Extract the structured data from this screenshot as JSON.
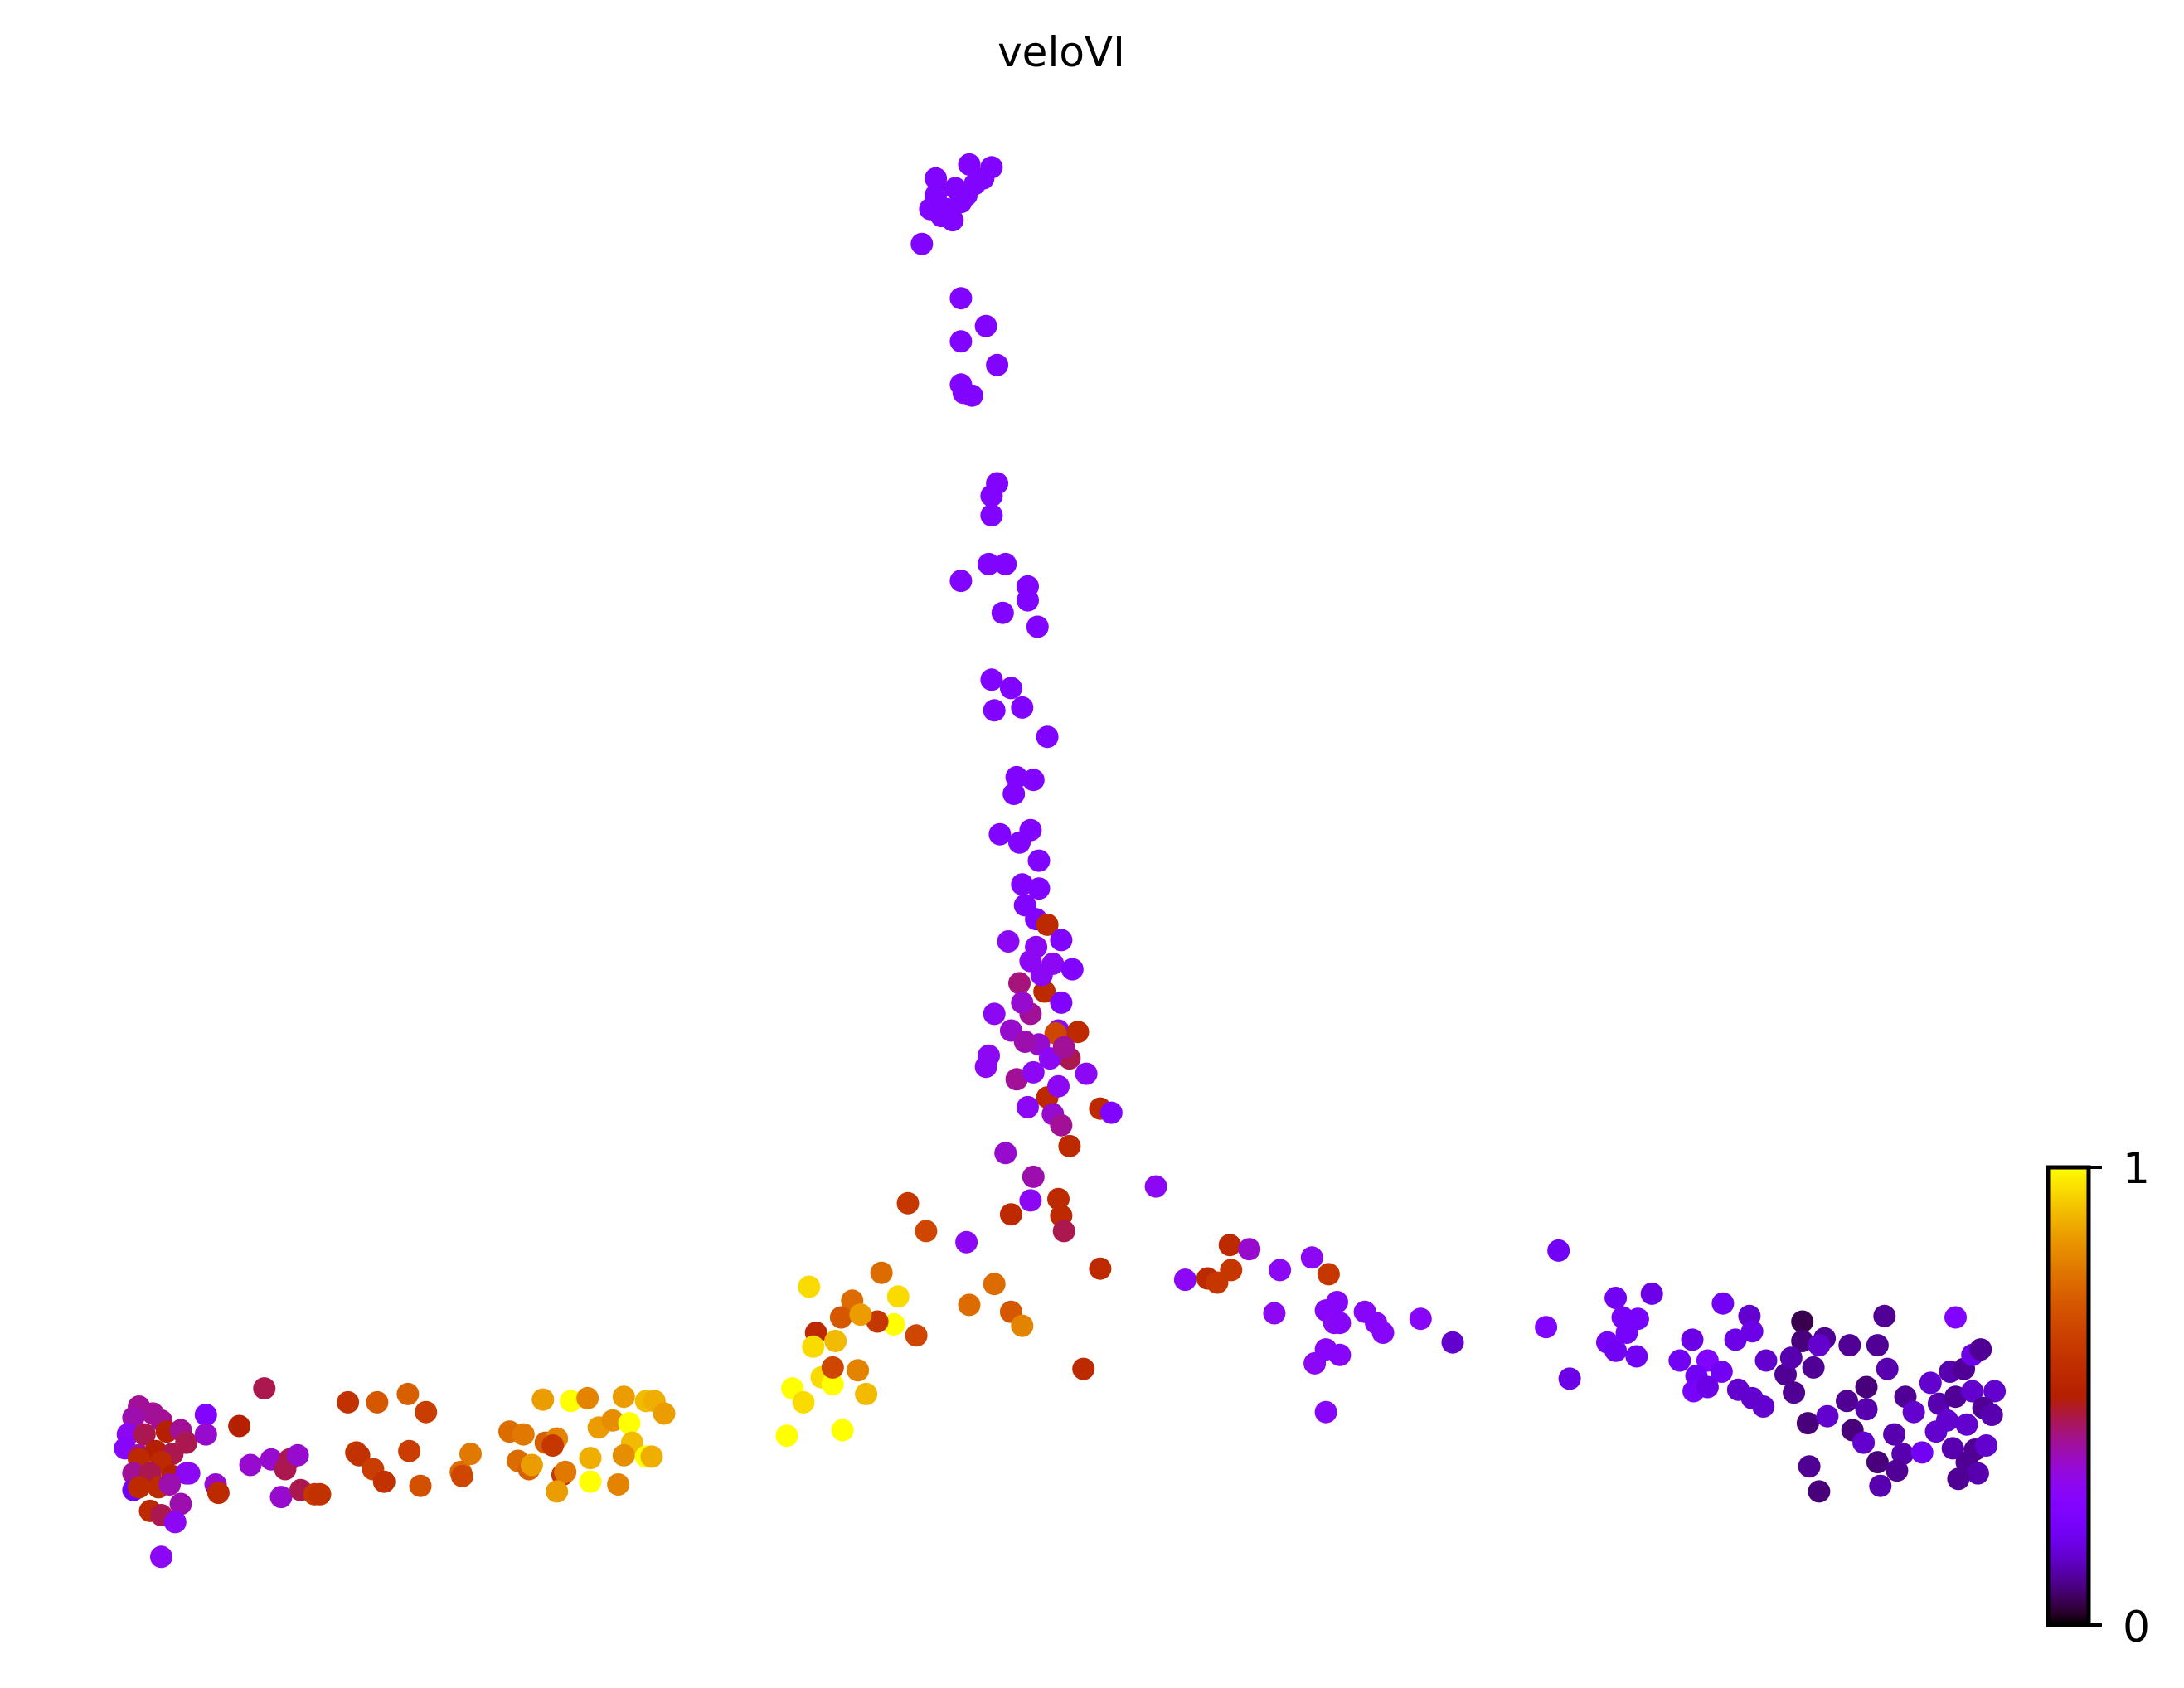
{
  "chart_data": {
    "type": "scatter",
    "title": "veloVI",
    "xlabel": "",
    "ylabel": "",
    "xlim": [
      0,
      136
    ],
    "ylim": [
      0,
      102
    ],
    "grid": false,
    "axes_visible": false,
    "colormap": "gnuplot",
    "colorbar": {
      "min": 0,
      "max": 1,
      "tick_labels": [
        "0",
        "1"
      ],
      "placement": "bottom-right"
    },
    "point_fields": [
      "x",
      "y",
      "value"
    ],
    "points": [
      [
        59.2,
        100.2,
        0.25
      ],
      [
        60.6,
        99.5,
        0.25
      ],
      [
        61.6,
        101.2,
        0.25
      ],
      [
        63.2,
        101,
        0.25
      ],
      [
        62.6,
        100.2,
        0.25
      ],
      [
        61,
        98.5,
        0.25
      ],
      [
        58.8,
        98,
        0.25
      ],
      [
        59.6,
        97.5,
        0.25
      ],
      [
        60.4,
        97.2,
        0.25
      ],
      [
        62,
        99.8,
        0.25
      ],
      [
        58.2,
        95.5,
        0.25
      ],
      [
        61.4,
        99,
        0.25
      ],
      [
        60,
        98,
        0.25
      ],
      [
        59.2,
        99,
        0.25
      ],
      [
        61,
        91.6,
        0.25
      ],
      [
        62.8,
        89.6,
        0.25
      ],
      [
        61,
        88.5,
        0.25
      ],
      [
        63.6,
        86.8,
        0.25
      ],
      [
        61,
        85.4,
        0.25
      ],
      [
        61.8,
        84.6,
        0.25
      ],
      [
        61.2,
        84.8,
        0.25
      ],
      [
        63.6,
        78.3,
        0.25
      ],
      [
        63.2,
        77.4,
        0.25
      ],
      [
        63.2,
        76,
        0.25
      ],
      [
        61,
        71.3,
        0.25
      ],
      [
        63,
        72.5,
        0.25
      ],
      [
        64.2,
        72.5,
        0.25
      ],
      [
        65.8,
        70.9,
        0.25
      ],
      [
        65.8,
        69.9,
        0.25
      ],
      [
        64,
        69,
        0.25
      ],
      [
        66.5,
        68,
        0.25
      ],
      [
        63.2,
        64.2,
        0.25
      ],
      [
        64.6,
        63.6,
        0.25
      ],
      [
        63.4,
        62,
        0.25
      ],
      [
        65.4,
        62.2,
        0.25
      ],
      [
        67.2,
        60.1,
        0.25
      ],
      [
        65,
        57.2,
        0.25
      ],
      [
        66.2,
        57,
        0.25
      ],
      [
        64.8,
        56,
        0.25
      ],
      [
        66,
        53.4,
        0.25
      ],
      [
        63.8,
        53.1,
        0.25
      ],
      [
        65.2,
        52.5,
        0.25
      ],
      [
        66.6,
        51.2,
        0.25
      ],
      [
        65.4,
        49.5,
        0.25
      ],
      [
        66.6,
        49.2,
        0.25
      ],
      [
        65.6,
        48,
        0.25
      ],
      [
        66.4,
        47,
        0.25
      ],
      [
        67.2,
        46.6,
        0.55
      ],
      [
        64.4,
        45.4,
        0.3
      ],
      [
        68.2,
        45.5,
        0.25
      ],
      [
        66,
        44,
        0.3
      ],
      [
        67.6,
        43.8,
        0.3
      ],
      [
        69,
        43.4,
        0.25
      ],
      [
        65.2,
        42.4,
        0.42
      ],
      [
        67,
        41.8,
        0.55
      ],
      [
        63.4,
        40.2,
        0.3
      ],
      [
        66,
        40.2,
        0.4
      ],
      [
        68.2,
        41,
        0.25
      ],
      [
        64.6,
        39,
        0.35
      ],
      [
        68,
        39,
        0.3
      ],
      [
        67.8,
        38.8,
        0.65
      ],
      [
        69.4,
        38.9,
        0.55
      ],
      [
        63,
        37.2,
        0.3
      ],
      [
        66.6,
        38,
        0.35
      ],
      [
        68.8,
        37,
        0.45
      ],
      [
        65,
        35.5,
        0.4
      ],
      [
        67.2,
        34.2,
        0.55
      ],
      [
        70,
        35.9,
        0.3
      ],
      [
        68,
        35,
        0.3
      ],
      [
        65.8,
        33.5,
        0.3
      ],
      [
        71,
        33.4,
        0.55
      ],
      [
        71.8,
        33.1,
        0.25
      ],
      [
        67.6,
        33,
        0.35
      ],
      [
        68.2,
        32.2,
        0.4
      ],
      [
        64.2,
        30.2,
        0.35
      ],
      [
        68.8,
        30.7,
        0.55
      ],
      [
        66.2,
        28.5,
        0.38
      ],
      [
        66,
        26.8,
        0.3
      ],
      [
        68,
        26.9,
        0.55
      ],
      [
        68.2,
        25.7,
        0.55
      ],
      [
        68.4,
        24.6,
        0.45
      ],
      [
        64.6,
        25.8,
        0.55
      ],
      [
        61.4,
        23.8,
        0.3
      ],
      [
        75,
        27.8,
        0.3
      ],
      [
        65.4,
        41,
        0.35
      ],
      [
        66.8,
        43,
        0.3
      ],
      [
        66.2,
        36,
        0.3
      ],
      [
        67.4,
        37,
        0.3
      ],
      [
        65.6,
        38.2,
        0.38
      ],
      [
        68.4,
        37.8,
        0.4
      ],
      [
        62.8,
        36.4,
        0.3
      ],
      [
        66.4,
        45,
        0.3
      ],
      [
        57.2,
        26.6,
        0.6
      ],
      [
        58.5,
        24.6,
        0.65
      ],
      [
        63.4,
        20.8,
        0.75
      ],
      [
        61.6,
        19.3,
        0.75
      ],
      [
        64.6,
        18.8,
        0.7
      ],
      [
        65.4,
        17.8,
        0.8
      ],
      [
        69.8,
        14.7,
        0.55
      ],
      [
        71,
        21.9,
        0.55
      ],
      [
        55.3,
        21.6,
        0.75
      ],
      [
        56.5,
        19.9,
        0.95
      ],
      [
        56.2,
        17.9,
        1
      ],
      [
        57.8,
        17.1,
        0.65
      ],
      [
        55,
        18.1,
        0.6
      ],
      [
        53.2,
        19.6,
        0.75
      ],
      [
        52.4,
        18.4,
        0.7
      ],
      [
        53.8,
        18.6,
        0.85
      ],
      [
        50.1,
        20.6,
        0.95
      ],
      [
        50.6,
        17.3,
        0.55
      ],
      [
        52,
        16.7,
        0.9
      ],
      [
        50.4,
        16.3,
        0.95
      ],
      [
        51,
        14.1,
        0.95
      ],
      [
        51.8,
        13.6,
        1
      ],
      [
        53.6,
        14.6,
        0.8
      ],
      [
        51.8,
        14.8,
        0.65
      ],
      [
        54.2,
        12.9,
        0.9
      ],
      [
        48.9,
        13.3,
        1
      ],
      [
        49.7,
        12.3,
        0.95
      ],
      [
        48.5,
        9.9,
        1
      ],
      [
        52.5,
        10.3,
        1
      ],
      [
        80.3,
        23.6,
        0.55
      ],
      [
        81.7,
        23.3,
        0.35
      ],
      [
        80.4,
        21.8,
        0.6
      ],
      [
        78.7,
        21.2,
        0.55
      ],
      [
        79.4,
        20.9,
        0.6
      ],
      [
        77.1,
        21.1,
        0.3
      ],
      [
        83.9,
        21.8,
        0.3
      ],
      [
        86.2,
        22.7,
        0.3
      ],
      [
        87.4,
        21.5,
        0.6
      ],
      [
        83.5,
        18.7,
        0.3
      ],
      [
        88,
        19.5,
        0.28
      ],
      [
        87.2,
        18.9,
        0.28
      ],
      [
        87.8,
        18,
        0.3
      ],
      [
        88.2,
        18,
        0.28
      ],
      [
        90,
        18.8,
        0.28
      ],
      [
        90.8,
        18,
        0.28
      ],
      [
        91.3,
        17.3,
        0.28
      ],
      [
        94,
        18.3,
        0.28
      ],
      [
        86.4,
        15.1,
        0.3
      ],
      [
        87.2,
        16.1,
        0.28
      ],
      [
        88.2,
        15.7,
        0.28
      ],
      [
        87.2,
        11.6,
        0.28
      ],
      [
        96.3,
        16.6,
        0.15
      ],
      [
        103,
        17.7,
        0.25
      ],
      [
        103.9,
        23.2,
        0.2
      ],
      [
        104.7,
        14,
        0.18
      ],
      [
        108,
        19.8,
        0.2
      ],
      [
        110.6,
        20.1,
        0.18
      ],
      [
        108.5,
        18.4,
        0.22
      ],
      [
        109.6,
        18.3,
        0.22
      ],
      [
        108.8,
        17.3,
        0.22
      ],
      [
        107.4,
        16.6,
        0.22
      ],
      [
        108,
        16,
        0.2
      ],
      [
        109.5,
        15.6,
        0.2
      ],
      [
        112.6,
        15.3,
        0.2
      ],
      [
        113.5,
        16.8,
        0.18
      ],
      [
        115.7,
        19.4,
        0.2
      ],
      [
        117.6,
        18.5,
        0.15
      ],
      [
        117.8,
        17.4,
        0.18
      ],
      [
        116.6,
        16.8,
        0.18
      ],
      [
        114.6,
        15.3,
        0.25
      ],
      [
        113.8,
        14.2,
        0.2
      ],
      [
        113.6,
        13.1,
        0.22
      ],
      [
        114.6,
        13.4,
        0.18
      ],
      [
        115.6,
        14.5,
        0.2
      ],
      [
        116.8,
        13.2,
        0.15
      ],
      [
        117.8,
        12.6,
        0.15
      ],
      [
        118.6,
        12,
        0.15
      ],
      [
        118.8,
        15.3,
        0.15
      ],
      [
        120.2,
        14.3,
        0.1
      ],
      [
        121.4,
        18.1,
        0.05
      ],
      [
        121.4,
        16.7,
        0.08
      ],
      [
        123,
        16.9,
        0.1
      ],
      [
        122.6,
        16.4,
        0.15
      ],
      [
        120.6,
        15.5,
        0.12
      ],
      [
        122.2,
        14.8,
        0.1
      ],
      [
        120.8,
        13,
        0.1
      ],
      [
        121.8,
        10.8,
        0.08
      ],
      [
        123.2,
        11.3,
        0.15
      ],
      [
        124.8,
        16.4,
        0.1
      ],
      [
        126.8,
        16.4,
        0.1
      ],
      [
        127.3,
        18.5,
        0.1
      ],
      [
        127.5,
        14.7,
        0.12
      ],
      [
        124.6,
        12.4,
        0.1
      ],
      [
        126,
        13.4,
        0.08
      ],
      [
        126,
        11.8,
        0.12
      ],
      [
        125,
        10.3,
        0.08
      ],
      [
        121.9,
        7.7,
        0.1
      ],
      [
        122.6,
        5.9,
        0.08
      ],
      [
        128.8,
        12.7,
        0.1
      ],
      [
        129.4,
        11.6,
        0.15
      ],
      [
        125.8,
        9.4,
        0.15
      ],
      [
        128,
        10,
        0.12
      ],
      [
        126.8,
        8,
        0.08
      ],
      [
        128.6,
        8.6,
        0.12
      ],
      [
        128.2,
        7.4,
        0.1
      ],
      [
        127,
        6.3,
        0.12
      ],
      [
        130,
        8.7,
        0.2
      ],
      [
        132.4,
        18.4,
        0.25
      ],
      [
        130.6,
        13.7,
        0.15
      ],
      [
        132,
        14.5,
        0.12
      ],
      [
        133,
        14.7,
        0.1
      ],
      [
        133.6,
        15.7,
        0.18
      ],
      [
        134.2,
        16.1,
        0.1
      ],
      [
        131.2,
        12.2,
        0.12
      ],
      [
        132.4,
        12.7,
        0.1
      ],
      [
        133.6,
        13.1,
        0.15
      ],
      [
        135.2,
        13.1,
        0.15
      ],
      [
        134.4,
        11.9,
        0.1
      ],
      [
        135,
        11.4,
        0.12
      ],
      [
        131.8,
        11,
        0.15
      ],
      [
        133.2,
        10.7,
        0.15
      ],
      [
        132.2,
        9,
        0.12
      ],
      [
        133.8,
        8.9,
        0.1
      ],
      [
        134.6,
        9.2,
        0.15
      ],
      [
        133.2,
        8,
        0.1
      ],
      [
        134,
        7.2,
        0.12
      ],
      [
        132.6,
        6.8,
        0.1
      ],
      [
        131,
        10.2,
        0.15
      ],
      [
        2,
        12,
        0.4
      ],
      [
        3,
        11.5,
        0.4
      ],
      [
        1.6,
        11.2,
        0.38
      ],
      [
        3.6,
        11,
        0.4
      ],
      [
        1.2,
        10,
        0.3
      ],
      [
        2.4,
        10,
        0.45
      ],
      [
        4,
        10.2,
        0.5
      ],
      [
        5,
        10.3,
        0.4
      ],
      [
        5.4,
        9.4,
        0.45
      ],
      [
        1,
        9,
        0.28
      ],
      [
        2,
        8.5,
        0.4
      ],
      [
        3.2,
        8.8,
        0.5
      ],
      [
        4.4,
        8.6,
        0.45
      ],
      [
        2,
        8.2,
        0.55
      ],
      [
        3.6,
        8,
        0.55
      ],
      [
        1.6,
        7.2,
        0.4
      ],
      [
        2.8,
        7.2,
        0.45
      ],
      [
        4.4,
        7,
        0.5
      ],
      [
        5.4,
        7.2,
        0.3
      ],
      [
        1.6,
        6,
        0.2
      ],
      [
        2,
        6.2,
        0.55
      ],
      [
        3.4,
        6.2,
        0.55
      ],
      [
        4.2,
        6.4,
        0.38
      ],
      [
        5,
        5,
        0.38
      ],
      [
        2.8,
        4.5,
        0.55
      ],
      [
        3.6,
        4.2,
        0.45
      ],
      [
        4.6,
        3.7,
        0.3
      ],
      [
        3.6,
        1.2,
        0.3
      ],
      [
        6.8,
        11.4,
        0.25
      ],
      [
        6.8,
        10,
        0.35
      ],
      [
        5.6,
        7.2,
        0.3
      ],
      [
        9.2,
        10.6,
        0.5
      ],
      [
        11,
        13.3,
        0.45
      ],
      [
        7.5,
        6.4,
        0.35
      ],
      [
        7.7,
        5.8,
        0.55
      ],
      [
        10,
        7.8,
        0.35
      ],
      [
        11.5,
        8.2,
        0.35
      ],
      [
        12.8,
        8.2,
        0.45
      ],
      [
        12.5,
        7.5,
        0.45
      ],
      [
        13.4,
        8.5,
        0.35
      ],
      [
        12.2,
        5.5,
        0.35
      ],
      [
        13.6,
        6,
        0.45
      ],
      [
        14.6,
        5.7,
        0.6
      ],
      [
        15,
        5.7,
        0.58
      ],
      [
        17,
        12.3,
        0.58
      ],
      [
        19.1,
        12.3,
        0.7
      ],
      [
        21.3,
        12.9,
        0.72
      ],
      [
        22.6,
        11.6,
        0.62
      ],
      [
        17.6,
        8.7,
        0.6
      ],
      [
        17.8,
        8.5,
        0.58
      ],
      [
        18.8,
        7.5,
        0.62
      ],
      [
        19.6,
        6.6,
        0.58
      ],
      [
        21.4,
        8.8,
        0.62
      ],
      [
        22.2,
        6.3,
        0.68
      ],
      [
        25.1,
        7.3,
        0.75
      ],
      [
        25.2,
        7,
        0.65
      ],
      [
        25.8,
        8.6,
        0.78
      ],
      [
        28.6,
        10.2,
        0.75
      ],
      [
        29.6,
        10,
        0.78
      ],
      [
        31,
        12.5,
        0.85
      ],
      [
        33,
        12.4,
        1
      ],
      [
        34.2,
        12.6,
        0.8
      ],
      [
        36.8,
        12.7,
        0.85
      ],
      [
        38.4,
        12.4,
        0.9
      ],
      [
        39,
        12.4,
        0.88
      ],
      [
        39.7,
        11.5,
        0.85
      ],
      [
        31.2,
        9.4,
        0.72
      ],
      [
        32,
        9.7,
        0.8
      ],
      [
        35,
        10.5,
        0.85
      ],
      [
        36,
        11,
        0.82
      ],
      [
        37.2,
        10.8,
        1
      ],
      [
        37.4,
        9.4,
        0.9
      ],
      [
        36.8,
        8.5,
        0.82
      ],
      [
        38.4,
        8.4,
        1
      ],
      [
        38.8,
        8.4,
        0.88
      ],
      [
        29.2,
        8.1,
        0.75
      ],
      [
        30,
        7.5,
        0.72
      ],
      [
        30.2,
        7.8,
        0.85
      ],
      [
        32.4,
        7.1,
        0.6
      ],
      [
        32.6,
        7.3,
        0.78
      ],
      [
        34.4,
        8.3,
        0.88
      ],
      [
        34.4,
        6.6,
        1
      ],
      [
        36.4,
        6.4,
        0.8
      ],
      [
        32,
        5.9,
        0.85
      ],
      [
        31.7,
        9.2,
        0.6
      ]
    ]
  }
}
